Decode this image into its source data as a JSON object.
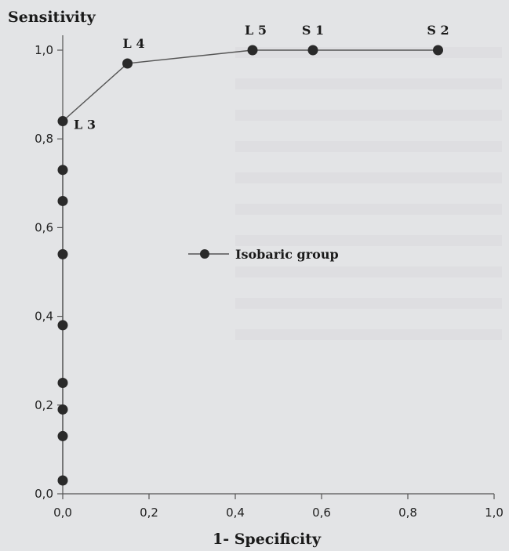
{
  "chart_data": {
    "type": "line",
    "ylabel": "Sensitivity",
    "xlabel": "1- Specificity",
    "xlim": [
      0,
      1
    ],
    "ylim": [
      0,
      1
    ],
    "x_ticks": [
      "0,0",
      "0,2",
      "0,4",
      "0,6",
      "0,8",
      "1,0"
    ],
    "y_ticks": [
      "0,0",
      "0,2",
      "0,4",
      "0,6",
      "0,8",
      "1,0"
    ],
    "grid": false,
    "legend_position": "center",
    "series": [
      {
        "name": "Isobaric group",
        "points": [
          {
            "x": 0.0,
            "y": 0.03,
            "label": ""
          },
          {
            "x": 0.0,
            "y": 0.13,
            "label": ""
          },
          {
            "x": 0.0,
            "y": 0.19,
            "label": ""
          },
          {
            "x": 0.0,
            "y": 0.25,
            "label": ""
          },
          {
            "x": 0.0,
            "y": 0.38,
            "label": ""
          },
          {
            "x": 0.0,
            "y": 0.54,
            "label": ""
          },
          {
            "x": 0.0,
            "y": 0.66,
            "label": ""
          },
          {
            "x": 0.0,
            "y": 0.73,
            "label": ""
          },
          {
            "x": 0.0,
            "y": 0.84,
            "label": "L 3"
          },
          {
            "x": 0.15,
            "y": 0.97,
            "label": "L 4"
          },
          {
            "x": 0.44,
            "y": 1.0,
            "label": "L 5"
          },
          {
            "x": 0.58,
            "y": 1.0,
            "label": "S 1"
          },
          {
            "x": 0.87,
            "y": 1.0,
            "label": "S 2"
          }
        ]
      }
    ]
  }
}
